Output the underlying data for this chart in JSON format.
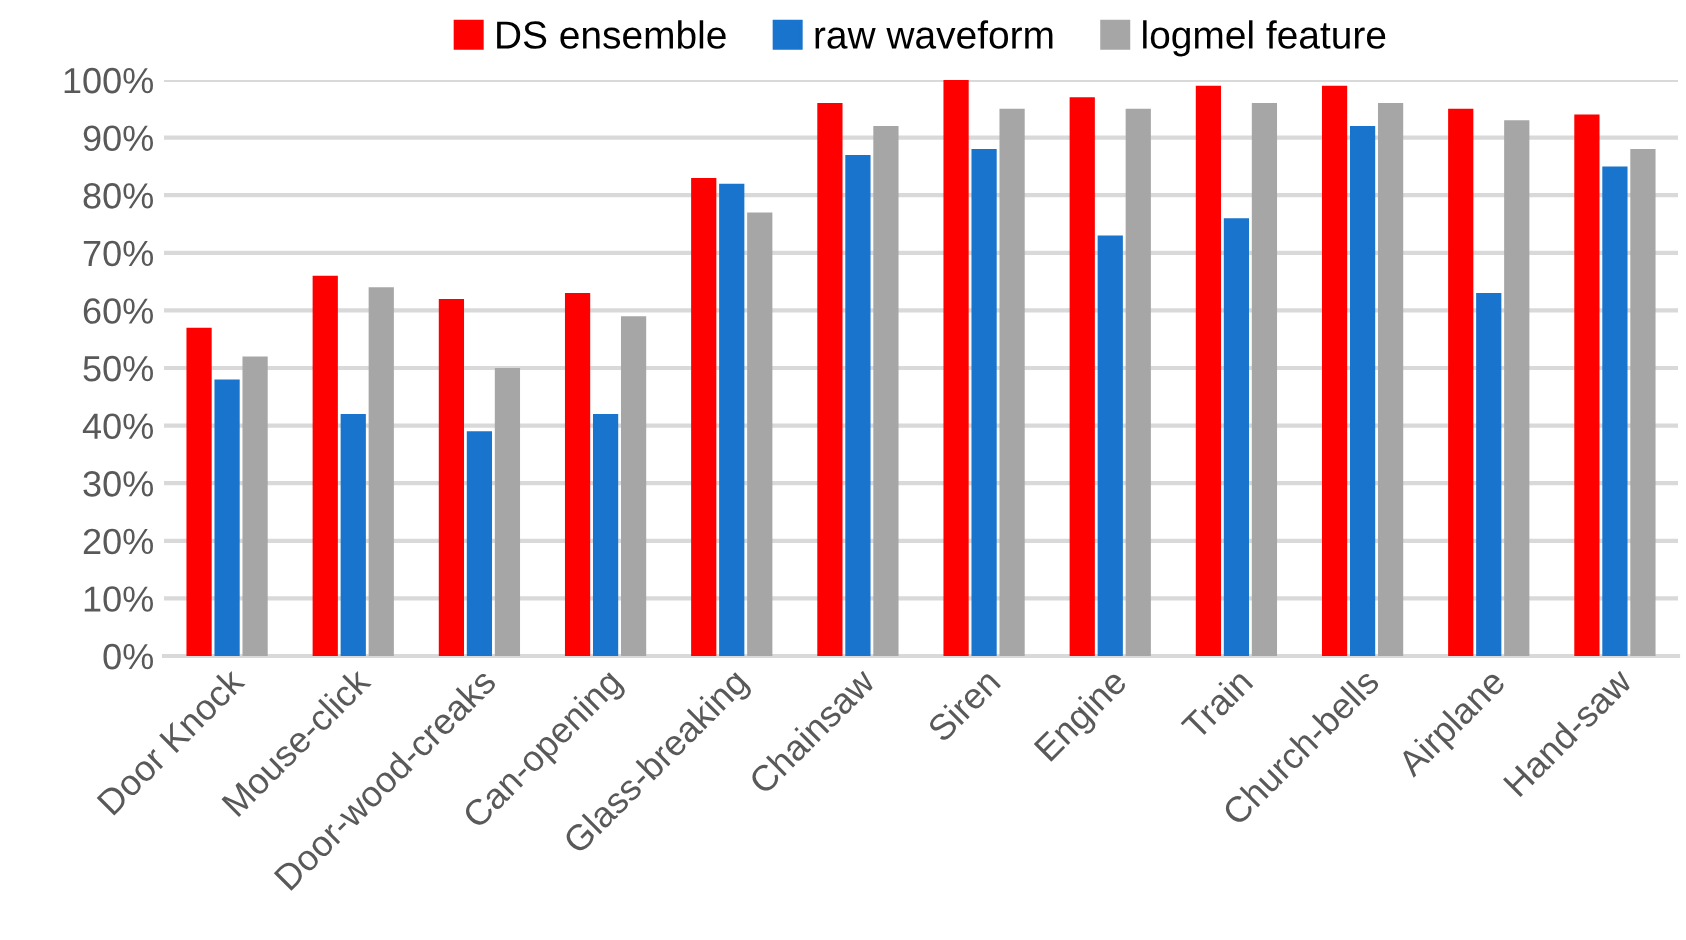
{
  "chart_data": {
    "type": "bar",
    "categories": [
      "Door Knock",
      "Mouse-click",
      "Door-wood-creaks",
      "Can-opening",
      "Glass-breaking",
      "Chainsaw",
      "Siren",
      "Engine",
      "Train",
      "Church-bells",
      "Airplane",
      "Hand-saw"
    ],
    "series": [
      {
        "name": "DS ensemble",
        "color": "#ff0000",
        "values": [
          57,
          66,
          62,
          63,
          83,
          96,
          100,
          97,
          99,
          99,
          95,
          94
        ]
      },
      {
        "name": "raw waveform",
        "color": "#1874cd",
        "values": [
          48,
          42,
          39,
          42,
          82,
          87,
          88,
          73,
          76,
          92,
          63,
          85
        ]
      },
      {
        "name": "logmel feature",
        "color": "#a6a6a6",
        "values": [
          52,
          64,
          50,
          59,
          77,
          92,
          95,
          95,
          96,
          96,
          93,
          88
        ]
      }
    ],
    "ylim": [
      0,
      100
    ],
    "yticks": [
      {
        "value": 0,
        "label": "0%"
      },
      {
        "value": 10,
        "label": "10%"
      },
      {
        "value": 20,
        "label": "20%"
      },
      {
        "value": 30,
        "label": "30%"
      },
      {
        "value": 40,
        "label": "40%"
      },
      {
        "value": 50,
        "label": "50%"
      },
      {
        "value": 60,
        "label": "60%"
      },
      {
        "value": 70,
        "label": "70%"
      },
      {
        "value": 80,
        "label": "80%"
      },
      {
        "value": 90,
        "label": "90%"
      },
      {
        "value": 100,
        "label": "100%"
      }
    ],
    "grid": "y",
    "legend": "top"
  }
}
